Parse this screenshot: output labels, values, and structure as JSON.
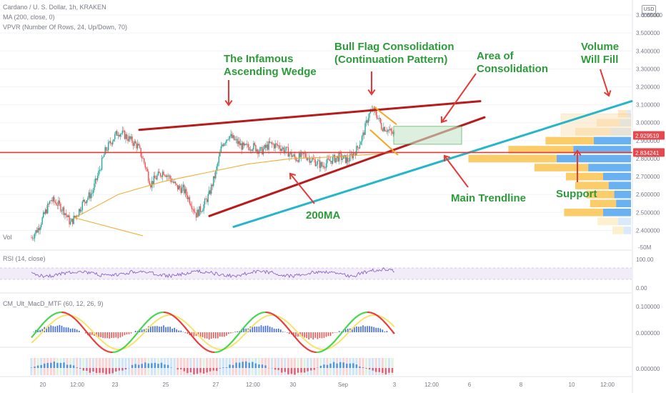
{
  "header": {
    "symbol_line": "Cardano / U. S. Dollar, 1h, KRAKEN",
    "ma_line": "MA (200, close, 0)",
    "vpvr_line": "VPVR (Number Of Rows, 24, Up/Down, 70)",
    "vol_label": "Vol",
    "currency_badge": "USD"
  },
  "chart_data": [
    {
      "type": "candlestick",
      "title": "Cardano / U. S. Dollar, 1h, KRAKEN",
      "price_axis_ticks": [
        "3.600000",
        "3.500000",
        "3.400000",
        "3.300000",
        "3.200000",
        "3.100000",
        "3.000000",
        "2.900000",
        "2.800000",
        "2.700000",
        "2.600000",
        "2.500000",
        "2.400000"
      ],
      "ylim": [
        2.33,
        3.66
      ],
      "time_axis_ticks": [
        "20",
        "12:00",
        "23",
        "25",
        "27",
        "12:00",
        "30",
        "Sep",
        "3",
        "12:00",
        "6",
        "8",
        "10",
        "12:00"
      ],
      "price_labels": [
        {
          "value": "2.929519",
          "color": "#e5484d"
        },
        {
          "value": "2.834241",
          "color": "#e5484d"
        }
      ],
      "top_axis_value": "3.65000",
      "volume_axis_value": "-50M",
      "close_path": [
        [
          0,
          2.36
        ],
        [
          6,
          2.41
        ],
        [
          12,
          2.49
        ],
        [
          18,
          2.57
        ],
        [
          24,
          2.55
        ],
        [
          30,
          2.51
        ],
        [
          36,
          2.44
        ],
        [
          42,
          2.49
        ],
        [
          48,
          2.56
        ],
        [
          56,
          2.61
        ],
        [
          62,
          2.72
        ],
        [
          68,
          2.84
        ],
        [
          74,
          2.9
        ],
        [
          80,
          2.95
        ],
        [
          86,
          2.93
        ],
        [
          92,
          2.9
        ],
        [
          98,
          2.87
        ],
        [
          104,
          2.78
        ],
        [
          110,
          2.66
        ],
        [
          116,
          2.7
        ],
        [
          122,
          2.73
        ],
        [
          128,
          2.69
        ],
        [
          134,
          2.64
        ],
        [
          140,
          2.63
        ],
        [
          146,
          2.57
        ],
        [
          152,
          2.49
        ],
        [
          158,
          2.53
        ],
        [
          164,
          2.6
        ],
        [
          170,
          2.72
        ],
        [
          176,
          2.88
        ],
        [
          182,
          2.93
        ],
        [
          188,
          2.9
        ],
        [
          196,
          2.86
        ],
        [
          204,
          2.87
        ],
        [
          212,
          2.84
        ],
        [
          220,
          2.88
        ],
        [
          228,
          2.87
        ],
        [
          236,
          2.84
        ],
        [
          244,
          2.8
        ],
        [
          252,
          2.82
        ],
        [
          260,
          2.79
        ],
        [
          268,
          2.76
        ],
        [
          276,
          2.79
        ],
        [
          284,
          2.81
        ],
        [
          292,
          2.79
        ],
        [
          300,
          2.85
        ],
        [
          306,
          2.93
        ],
        [
          311,
          3.04
        ],
        [
          315,
          3.07
        ],
        [
          319,
          3.04
        ],
        [
          323,
          2.98
        ],
        [
          327,
          2.97
        ],
        [
          331,
          2.95
        ],
        [
          335,
          2.93
        ]
      ],
      "ma200_path": [
        [
          0,
          2.37
        ],
        [
          40,
          2.47
        ],
        [
          80,
          2.6
        ],
        [
          120,
          2.67
        ],
        [
          160,
          2.72
        ],
        [
          200,
          2.77
        ],
        [
          240,
          2.8
        ],
        [
          280,
          2.81
        ],
        [
          330,
          2.83
        ]
      ],
      "lines": [
        {
          "name": "wedge-upper-line",
          "color": "#b71c1c",
          "from": [
            0,
            2.96
          ],
          "to": [
            390,
            3.12
          ]
        },
        {
          "name": "wedge-lower-line",
          "color": "#b71c1c",
          "from": [
            120,
            2.48
          ],
          "to": [
            400,
            3.03
          ]
        },
        {
          "name": "main-trendline",
          "color": "#26b6c9",
          "from": [
            160,
            2.42
          ],
          "to": [
            540,
            3.12
          ]
        },
        {
          "name": "support-line",
          "color": "#e53935",
          "from": [
            0,
            2.834
          ],
          "to": [
            540,
            2.834
          ]
        }
      ],
      "consolidation_box": {
        "x0": 340,
        "x1": 380,
        "y0": 2.88,
        "y1": 2.98
      },
      "volume_profile": [
        {
          "price": 3.05,
          "up": 0.1,
          "down": 0.04
        },
        {
          "price": 3.0,
          "up": 0.25,
          "down": 0.12
        },
        {
          "price": 2.95,
          "up": 0.38,
          "down": 0.22
        },
        {
          "price": 2.9,
          "up": 0.52,
          "down": 0.4
        },
        {
          "price": 2.85,
          "up": 0.7,
          "down": 0.62
        },
        {
          "price": 2.8,
          "up": 0.95,
          "down": 0.8
        },
        {
          "price": 2.75,
          "up": 0.58,
          "down": 0.46
        },
        {
          "price": 2.7,
          "up": 0.4,
          "down": 0.3
        },
        {
          "price": 2.65,
          "up": 0.36,
          "down": 0.24
        },
        {
          "price": 2.6,
          "up": 0.3,
          "down": 0.18
        },
        {
          "price": 2.55,
          "up": 0.28,
          "down": 0.16
        },
        {
          "price": 2.5,
          "up": 0.42,
          "down": 0.3
        },
        {
          "price": 2.45,
          "up": 0.22,
          "down": 0.14
        },
        {
          "price": 2.4,
          "up": 0.12,
          "down": 0.08
        }
      ]
    },
    {
      "type": "line",
      "title": "RSI (14, close)",
      "axis_ticks": [
        "100.00",
        "0.00"
      ],
      "ylim": [
        0,
        100
      ]
    },
    {
      "type": "bar",
      "title": "CM_Ult_MacD_MTF (60, 12, 26, 9)",
      "axis_ticks": [
        "0.100000",
        "0.000000"
      ]
    },
    {
      "type": "bar",
      "title": "",
      "axis_ticks": [
        "0.000000"
      ]
    }
  ],
  "annotations": [
    {
      "name": "annotation-ascending-wedge",
      "lines": [
        "The Infamous",
        "Ascending Wedge"
      ],
      "color": "#2e9b3a"
    },
    {
      "name": "annotation-bull-flag",
      "lines": [
        "Bull Flag Consolidation",
        "(Continuation Pattern)"
      ],
      "color": "#2e9b3a"
    },
    {
      "name": "annotation-area-consolidation",
      "lines": [
        "Area of",
        "Consolidation"
      ],
      "color": "#2e9b3a"
    },
    {
      "name": "annotation-volume-fill",
      "lines": [
        "Volume",
        "Will Fill"
      ],
      "color": "#2e9b3a"
    },
    {
      "name": "annotation-main-trendline",
      "lines": [
        "Main Trendline"
      ],
      "color": "#2e9b3a"
    },
    {
      "name": "annotation-support",
      "lines": [
        "Support"
      ],
      "color": "#2e9b3a"
    },
    {
      "name": "annotation-200ma",
      "lines": [
        "200MA"
      ],
      "color": "#2e9b3a"
    }
  ],
  "colors": {
    "up": "#26a69a",
    "down": "#ef5350",
    "ma200": "#f5a623",
    "wedge": "#b71c1c",
    "trendline": "#26b6c9",
    "support": "#e53935",
    "arrow": "#e53935",
    "annotation": "#2e9b3a",
    "rsi_line": "#7e57c2",
    "rsi_fill": "#ece4f7",
    "macd_green": "#43d44a",
    "macd_red": "#e53935",
    "macd_yellow": "#f7e36b",
    "hist_blue": "#1e4fd8",
    "hist_red": "#e53935"
  }
}
